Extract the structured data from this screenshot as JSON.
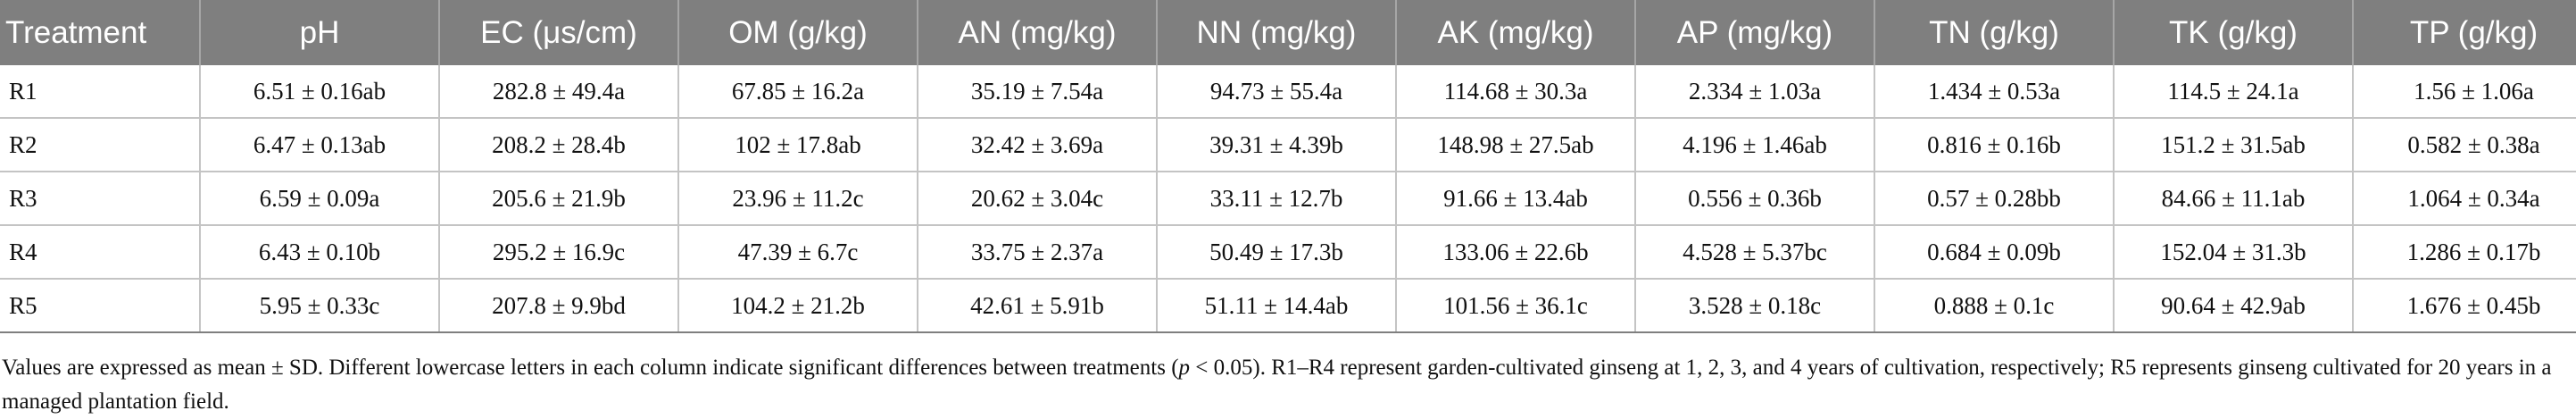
{
  "table": {
    "headers": [
      "Treatment",
      "pH",
      "EC (μs/cm)",
      "OM (g/kg)",
      "AN (mg/kg)",
      "NN (mg/kg)",
      "AK (mg/kg)",
      "AP (mg/kg)",
      "TN (g/kg)",
      "TK (g/kg)",
      "TP (g/kg)"
    ],
    "rows": [
      [
        "R1",
        "6.51 ± 0.16ab",
        "282.8 ± 49.4a",
        "67.85 ± 16.2a",
        "35.19 ± 7.54a",
        "94.73 ± 55.4a",
        "114.68 ± 30.3a",
        "2.334 ± 1.03a",
        "1.434 ± 0.53a",
        "114.5 ± 24.1a",
        "1.56 ± 1.06a"
      ],
      [
        "R2",
        "6.47 ± 0.13ab",
        "208.2 ± 28.4b",
        "102 ± 17.8ab",
        "32.42 ± 3.69a",
        "39.31 ± 4.39b",
        "148.98 ± 27.5ab",
        "4.196 ± 1.46ab",
        "0.816 ± 0.16b",
        "151.2 ± 31.5ab",
        "0.582 ± 0.38a"
      ],
      [
        "R3",
        "6.59 ± 0.09a",
        "205.6 ± 21.9b",
        "23.96 ± 11.2c",
        "20.62 ± 3.04c",
        "33.11 ± 12.7b",
        "91.66 ± 13.4ab",
        "0.556 ± 0.36b",
        "0.57 ± 0.28bb",
        "84.66 ± 11.1ab",
        "1.064 ± 0.34a"
      ],
      [
        "R4",
        "6.43 ± 0.10b",
        "295.2 ± 16.9c",
        "47.39 ± 6.7c",
        "33.75 ± 2.37a",
        "50.49 ± 17.3b",
        "133.06 ± 22.6b",
        "4.528 ± 5.37bc",
        "0.684 ± 0.09b",
        "152.04 ± 31.3b",
        "1.286 ± 0.17b"
      ],
      [
        "R5",
        "5.95 ± 0.33c",
        "207.8 ± 9.9bd",
        "104.2 ± 21.2b",
        "42.61 ± 5.91b",
        "51.11 ± 14.4ab",
        "101.56 ± 36.1c",
        "3.528 ± 0.18c",
        "0.888 ± 0.1c",
        "90.64 ± 42.9ab",
        "1.676 ± 0.45b"
      ]
    ]
  },
  "footnote": {
    "before_p": "Values are expressed as mean ± SD. Different lowercase letters in each column indicate significant differences between treatments (",
    "p_symbol": "p",
    "after_p": " < 0.05). R1–R4 represent garden-cultivated ginseng at 1, 2, 3, and 4 years of cultivation, respectively; R5 represents ginseng cultivated for 20 years in a managed plantation field."
  },
  "colors": {
    "header_bg": "#7f7f7f",
    "header_text": "#ffffff",
    "grid_line": "#c4c4c4"
  }
}
